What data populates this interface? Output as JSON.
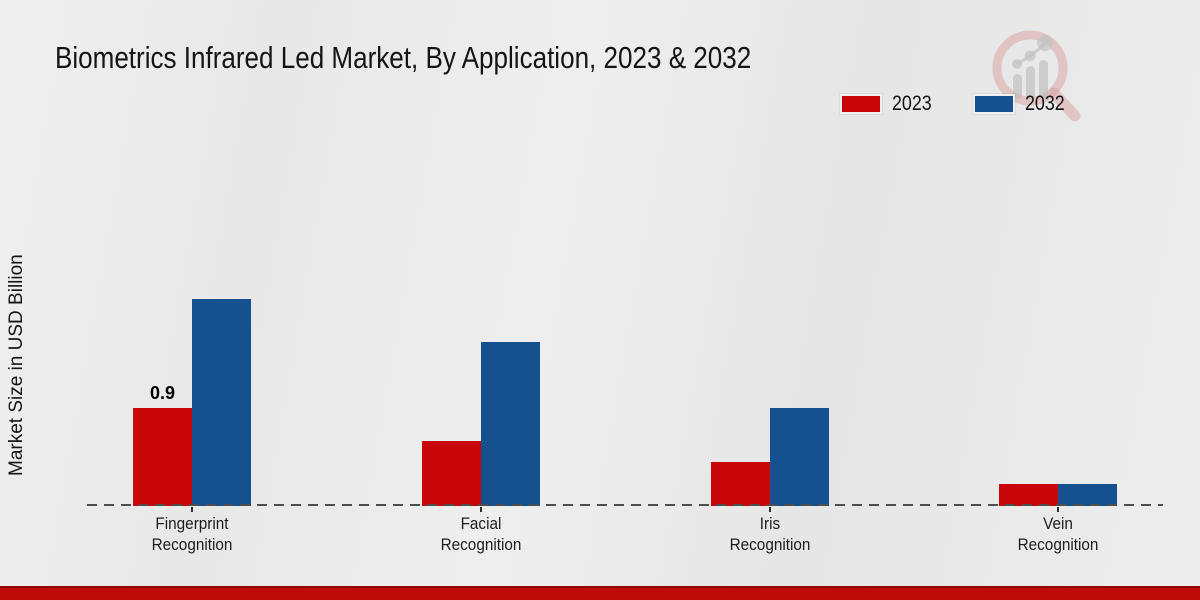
{
  "title": "Biometrics Infrared Led Market, By Application, 2023 & 2032",
  "y_axis_label": "Market Size in USD Billion",
  "legend": [
    {
      "label": "2023",
      "color": "#c90609"
    },
    {
      "label": "2032",
      "color": "#15508f"
    }
  ],
  "colors": {
    "series_2023": "#c90609",
    "series_2032": "#15508f",
    "axis_line": "#4d4d4d",
    "footer_strip": "#bf0a0a",
    "background": "#eaeaea"
  },
  "watermark_icon": "magnifier-bar-chart-logo",
  "chart_data": {
    "type": "bar",
    "title": "Biometrics Infrared Led Market, By Application, 2023 & 2032",
    "categories": [
      "Fingerprint Recognition",
      "Facial Recognition",
      "Iris Recognition",
      "Vein Recognition"
    ],
    "series": [
      {
        "name": "2023",
        "color": "#c90609",
        "values": [
          0.9,
          0.6,
          0.4,
          0.2
        ]
      },
      {
        "name": "2032",
        "color": "#15508f",
        "values": [
          1.9,
          1.5,
          0.9,
          0.2
        ]
      }
    ],
    "bar_labels": [
      {
        "series": "2023",
        "category": "Fingerprint Recognition",
        "text": "0.9"
      }
    ],
    "xlabel": "",
    "ylabel": "Market Size in USD Billion",
    "ylim": [
      0,
      2.1
    ],
    "grid": false,
    "y_ticks_visible": false,
    "legend_position": "top-right",
    "baseline_style": "dashed"
  }
}
